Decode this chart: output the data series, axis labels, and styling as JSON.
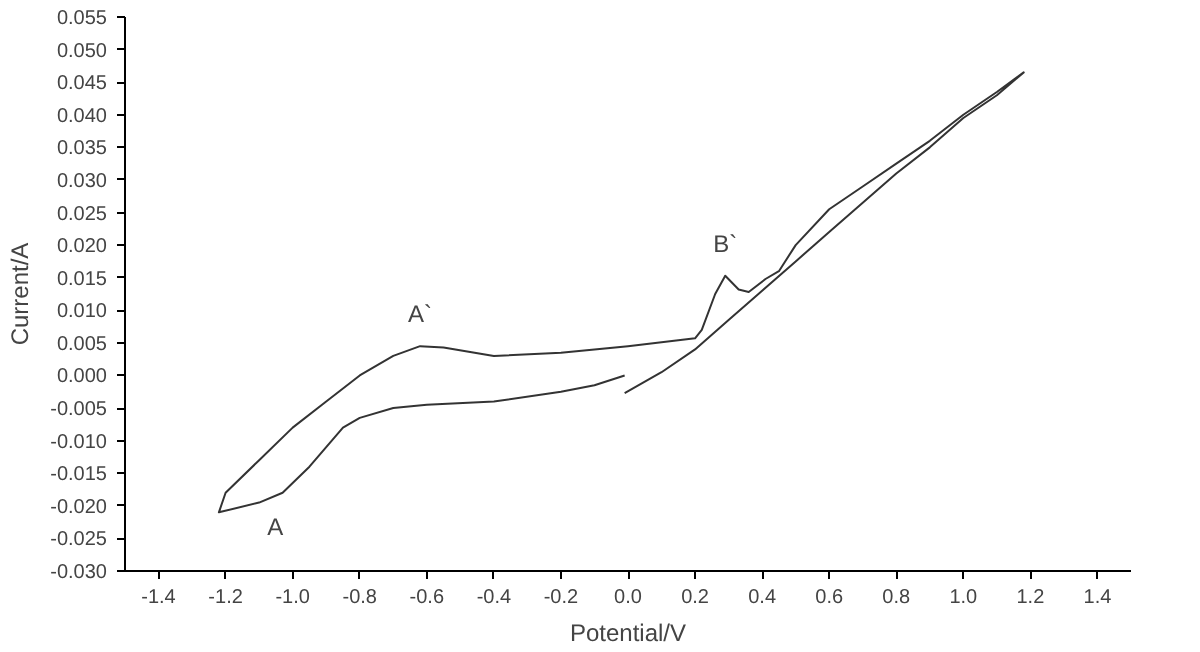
{
  "chart_data": {
    "type": "line",
    "xlabel": "Potential/V",
    "ylabel": "Current/A",
    "xlim": [
      -1.5,
      1.5
    ],
    "ylim": [
      -0.03,
      0.055
    ],
    "xticks": [
      {
        "value": -1.4,
        "label": "-1.4"
      },
      {
        "value": -1.2,
        "label": "-1.2"
      },
      {
        "value": -1.0,
        "label": "-1.0"
      },
      {
        "value": -0.8,
        "label": "-0.8"
      },
      {
        "value": -0.6,
        "label": "-0.6"
      },
      {
        "value": -0.4,
        "label": "-0.4"
      },
      {
        "value": -0.2,
        "label": "-0.2"
      },
      {
        "value": 0.0,
        "label": "0.0"
      },
      {
        "value": 0.2,
        "label": "0.2"
      },
      {
        "value": 0.4,
        "label": "0.4"
      },
      {
        "value": 0.6,
        "label": "0.6"
      },
      {
        "value": 0.8,
        "label": "0.8"
      },
      {
        "value": 1.0,
        "label": "1.0"
      },
      {
        "value": 1.2,
        "label": "1.2"
      },
      {
        "value": 1.4,
        "label": "1.4"
      }
    ],
    "yticks": [
      {
        "value": -0.03,
        "label": "-0.030"
      },
      {
        "value": -0.025,
        "label": "-0.025"
      },
      {
        "value": -0.02,
        "label": "-0.020"
      },
      {
        "value": -0.015,
        "label": "-0.015"
      },
      {
        "value": -0.01,
        "label": "-0.010"
      },
      {
        "value": -0.005,
        "label": "-0.005"
      },
      {
        "value": 0.0,
        "label": "0.000"
      },
      {
        "value": 0.005,
        "label": "0.005"
      },
      {
        "value": 0.01,
        "label": "0.010"
      },
      {
        "value": 0.015,
        "label": "0.015"
      },
      {
        "value": 0.02,
        "label": "0.020"
      },
      {
        "value": 0.025,
        "label": "0.025"
      },
      {
        "value": 0.03,
        "label": "0.030"
      },
      {
        "value": 0.035,
        "label": "0.035"
      },
      {
        "value": 0.04,
        "label": "0.040"
      },
      {
        "value": 0.045,
        "label": "0.045"
      },
      {
        "value": 0.05,
        "label": "0.050"
      },
      {
        "value": 0.055,
        "label": "0.055"
      }
    ],
    "grid": false,
    "marker": "none",
    "line_style": "solid",
    "series": [
      {
        "color": "#333333",
        "x": [
          -0.01,
          0.1,
          0.2,
          0.3,
          0.4,
          0.5,
          0.6,
          0.7,
          0.8,
          0.9,
          1.0,
          1.1,
          1.18,
          1.1,
          1.0,
          0.9,
          0.8,
          0.7,
          0.6,
          0.5,
          0.45,
          0.41,
          0.36,
          0.33,
          0.29,
          0.26,
          0.22,
          0.2,
          0.0,
          -0.2,
          -0.4,
          -0.55,
          -0.62,
          -0.7,
          -0.8,
          -0.9,
          -1.0,
          -1.1,
          -1.2,
          -1.22,
          -1.1,
          -1.03,
          -0.95,
          -0.9,
          -0.85,
          -0.8,
          -0.7,
          -0.6,
          -0.4,
          -0.2,
          -0.1,
          -0.01
        ],
        "values": [
          -0.0027,
          0.0005,
          0.004,
          0.0085,
          0.013,
          0.0175,
          0.022,
          0.0265,
          0.031,
          0.035,
          0.0395,
          0.043,
          0.0465,
          0.0435,
          0.04,
          0.036,
          0.0325,
          0.029,
          0.0255,
          0.02,
          0.016,
          0.0148,
          0.0128,
          0.0132,
          0.0153,
          0.0125,
          0.007,
          0.0057,
          0.0045,
          0.0035,
          0.003,
          0.0043,
          0.0045,
          0.003,
          0.0,
          -0.004,
          -0.008,
          -0.013,
          -0.018,
          -0.021,
          -0.0195,
          -0.018,
          -0.014,
          -0.011,
          -0.008,
          -0.0065,
          -0.005,
          -0.0045,
          -0.004,
          -0.0025,
          -0.0015,
          0.0
        ]
      }
    ],
    "annotations": [
      {
        "text": "A",
        "x": -1.1,
        "y": -0.0195
      },
      {
        "text": "A`",
        "x": -0.62,
        "y": 0.0045
      },
      {
        "text": "B`",
        "x": 0.29,
        "y": 0.0153
      }
    ]
  }
}
